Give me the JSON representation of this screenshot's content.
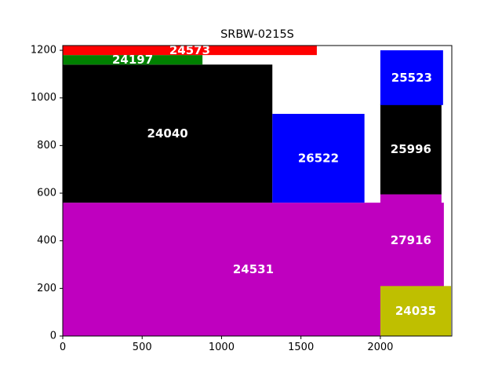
{
  "chart_data": {
    "type": "rectangles",
    "title": "SRBW-0215S",
    "xlabel": "",
    "ylabel": "",
    "xlim": [
      0,
      2450
    ],
    "ylim": [
      0,
      1220
    ],
    "x_ticks": [
      0,
      500,
      1000,
      1500,
      2000
    ],
    "y_ticks": [
      0,
      200,
      400,
      600,
      800,
      1000,
      1200
    ],
    "grid": false,
    "rectangles": [
      {
        "label": "24531",
        "x": 0,
        "y": 0,
        "width": 2400,
        "height": 560,
        "color": "#bf00bf"
      },
      {
        "label": "24040",
        "x": 0,
        "y": 560,
        "width": 1320,
        "height": 580,
        "color": "#000000"
      },
      {
        "label": "26522",
        "x": 1320,
        "y": 560,
        "width": 580,
        "height": 373,
        "color": "#0000ff"
      },
      {
        "label": "24197",
        "x": 0,
        "y": 1140,
        "width": 880,
        "height": 40,
        "color": "#008000"
      },
      {
        "label": "24573",
        "x": 0,
        "y": 1180,
        "width": 1600,
        "height": 40,
        "color": "#ff0000"
      },
      {
        "label": "27916",
        "x": 2000,
        "y": 210,
        "width": 385,
        "height": 385,
        "color": "#bf00bf"
      },
      {
        "label": "24035",
        "x": 2000,
        "y": 0,
        "width": 445,
        "height": 210,
        "color": "#bfbf00"
      },
      {
        "label": "25996",
        "x": 2000,
        "y": 595,
        "width": 385,
        "height": 380,
        "color": "#000000"
      },
      {
        "label": "25523",
        "x": 2000,
        "y": 970,
        "width": 395,
        "height": 230,
        "color": "#0000ff"
      }
    ]
  }
}
